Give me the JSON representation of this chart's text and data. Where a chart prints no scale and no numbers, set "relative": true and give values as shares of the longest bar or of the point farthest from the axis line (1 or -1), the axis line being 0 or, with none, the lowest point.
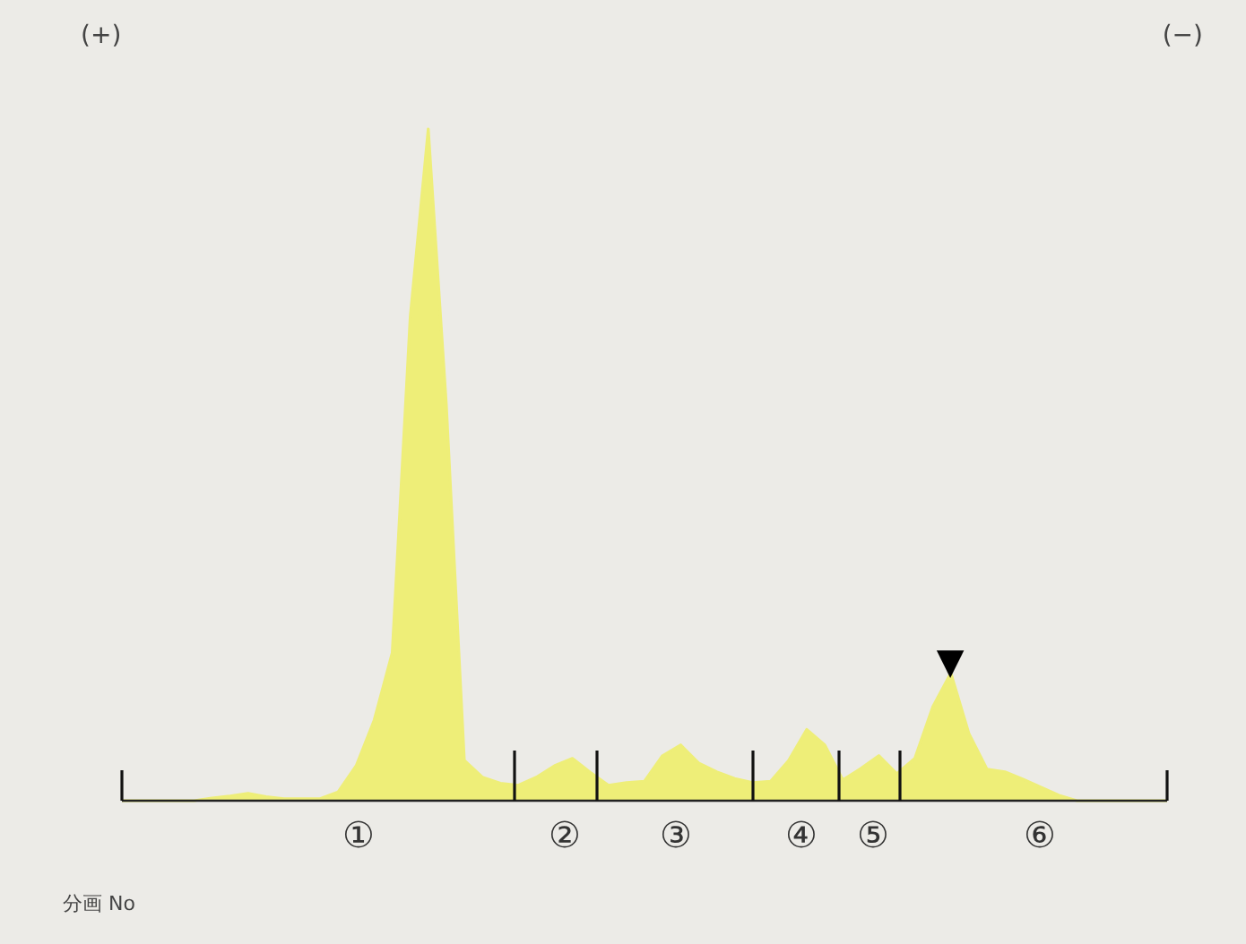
{
  "chart_data": {
    "type": "area",
    "relative": true,
    "tick_labels": false,
    "grid": false,
    "legend": false,
    "line_style": "solid",
    "marker": "none",
    "categories": [
      null,
      null,
      null,
      null,
      null,
      null,
      null,
      null,
      null,
      null,
      null,
      null,
      null,
      null,
      null,
      null,
      null,
      null,
      null,
      null,
      null,
      null,
      null,
      null,
      null,
      null,
      null,
      null,
      null,
      null,
      null,
      null,
      null,
      null,
      null,
      null,
      null,
      null,
      null,
      null,
      null,
      null,
      null,
      null,
      null,
      null,
      null,
      null,
      null,
      null,
      null,
      null,
      null,
      null,
      null,
      null,
      null,
      null,
      null
    ],
    "series": [
      {
        "color": "#eeee78",
        "values": [
          0,
          0,
          0,
          0,
          0,
          0.004,
          0.007,
          0.011,
          0.006,
          0.003,
          0.003,
          0.003,
          0.013,
          0.052,
          0.12,
          0.22,
          0.72,
          1,
          0.59,
          0.06,
          0.035,
          0.026,
          0.023,
          0.035,
          0.052,
          0.063,
          0.042,
          0.023,
          0.027,
          0.029,
          0.067,
          0.083,
          0.056,
          0.043,
          0.033,
          0.027,
          0.029,
          0.06,
          0.106,
          0.083,
          0.031,
          0.048,
          0.067,
          0.04,
          0.063,
          0.14,
          0.19,
          0.1,
          0.047,
          0.043,
          0.032,
          0.02,
          0.008,
          0,
          0,
          0,
          0,
          0,
          0
        ]
      }
    ],
    "annotations": [
      "①",
      "②",
      "③",
      "④",
      "⑤",
      "⑥",
      "▼",
      "(+)",
      "(−)",
      "分画 No"
    ]
  }
}
